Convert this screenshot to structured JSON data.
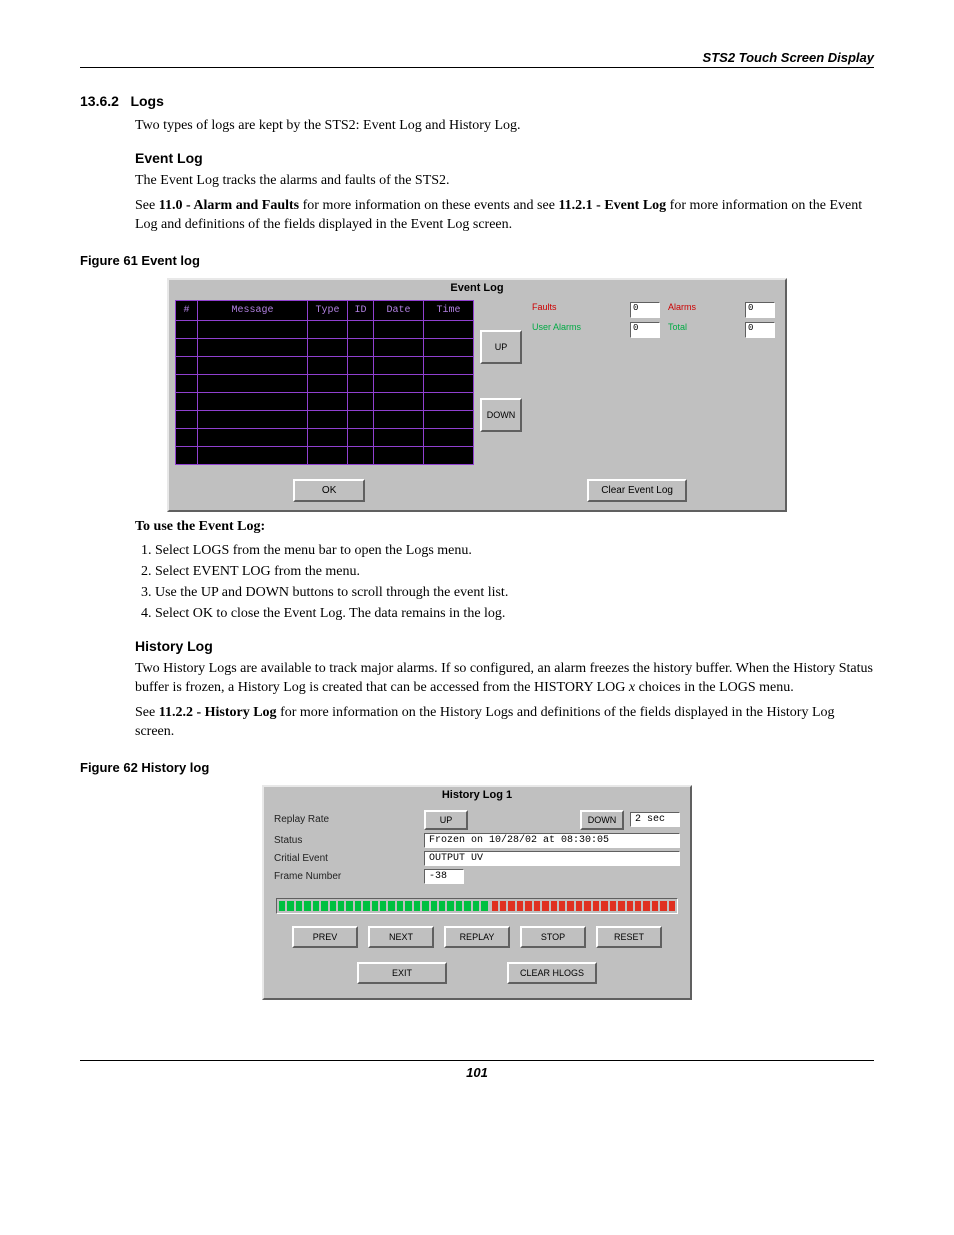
{
  "header": {
    "running_head": "STS2 Touch Screen Display"
  },
  "section": {
    "num": "13.6.2",
    "title": "Logs",
    "intro": "Two types of logs are kept by the STS2: Event Log and History Log."
  },
  "event_log_section": {
    "heading": "Event Log",
    "p1": "The Event Log tracks the alarms and faults of the STS2.",
    "p2_pre": "See ",
    "p2_ref1": "11.0 - Alarm and Faults",
    "p2_mid": " for more information on these events and see ",
    "p2_ref2": "11.2.1 - Event Log",
    "p2_end": " for more information on the Event Log and definitions of the fields displayed in the Event Log screen."
  },
  "fig61": {
    "caption": "Figure 61   Event log",
    "title": "Event Log",
    "columns": {
      "num": "#",
      "msg": "Message",
      "type": "Type",
      "id": "ID",
      "date": "Date",
      "time": "Time"
    },
    "rows": 8,
    "up": "UP",
    "down": "DOWN",
    "ok": "OK",
    "clear": "Clear Event Log",
    "stats": {
      "faults_label": "Faults",
      "faults_val": "0",
      "alarms_label": "Alarms",
      "alarms_val": "0",
      "user_alarms_label": "User Alarms",
      "user_alarms_val": "0",
      "total_label": "Total",
      "total_val": "0"
    }
  },
  "howto": {
    "heading": "To use the Event Log:",
    "steps": [
      "Select LOGS from the menu bar to open the Logs menu.",
      "Select EVENT LOG from the menu.",
      "Use the UP and DOWN buttons to scroll through the event list.",
      "Select OK to close the Event Log. The data remains in the log."
    ]
  },
  "history_log_section": {
    "heading": "History Log",
    "p1_a": "Two History Logs are available to track major alarms. If so configured, an alarm freezes the history buffer. When the History Status buffer is frozen, a History Log is created that can be accessed from the HISTORY LOG ",
    "p1_x": "x",
    "p1_b": " choices in the LOGS menu.",
    "p2_pre": "See ",
    "p2_ref": "11.2.2 - History Log",
    "p2_end": " for more information on the History Logs and definitions of the fields displayed in the History Log screen."
  },
  "fig62": {
    "caption": "Figure 62   History log",
    "title": "History Log 1",
    "rows": {
      "rate_label": "Replay Rate",
      "rate_val": "2 sec",
      "status_label": "Status",
      "status_val": "Frozen on 10/28/02 at 08:30:05",
      "critical_label": "Critial Event",
      "critical_val": "OUTPUT UV",
      "frame_label": "Frame Number",
      "frame_val": "-38"
    },
    "up": "UP",
    "down": "DOWN",
    "buttons": {
      "prev": "PREV",
      "next": "NEXT",
      "replay": "REPLAY",
      "stop": "STOP",
      "reset": "RESET",
      "exit": "EXIT",
      "clear": "CLEAR HLOGS"
    },
    "progress": {
      "green_segments": 25,
      "red_segments": 22
    }
  },
  "page_number": "101"
}
